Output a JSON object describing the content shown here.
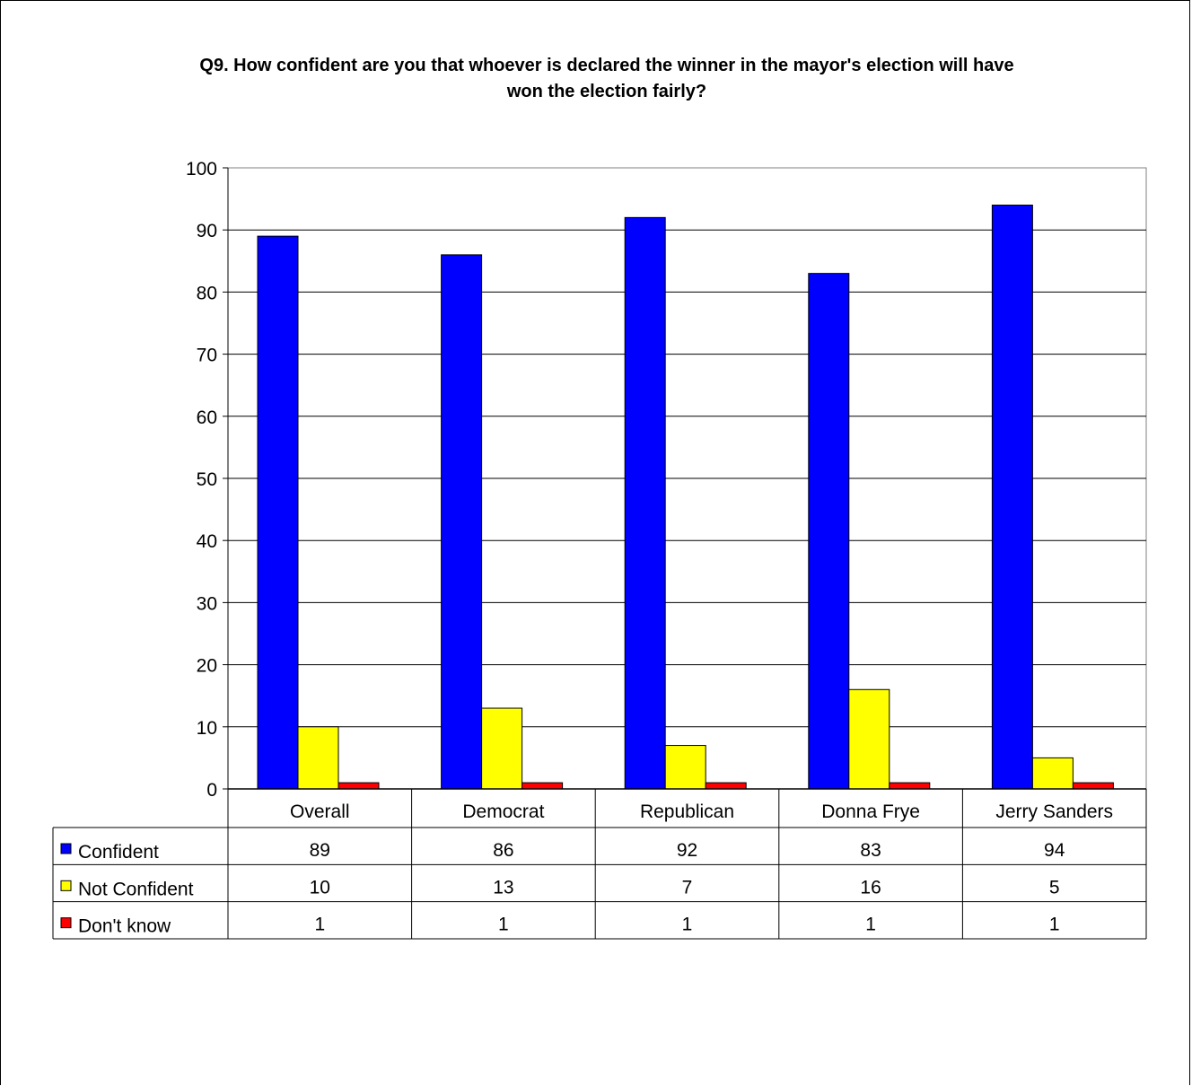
{
  "chart_data": {
    "type": "bar",
    "title": "Q9. How confident are you that whoever is declared the winner in the mayor's election will have won the election fairly?",
    "categories": [
      "Overall",
      "Democrat",
      "Republican",
      "Donna Frye",
      "Jerry Sanders"
    ],
    "series": [
      {
        "name": "Confident",
        "values": [
          89,
          86,
          92,
          83,
          94
        ],
        "color": "#0000ff"
      },
      {
        "name": "Not Confident",
        "values": [
          10,
          13,
          7,
          16,
          5
        ],
        "color": "#ffff00"
      },
      {
        "name": "Don't know",
        "values": [
          1,
          1,
          1,
          1,
          1
        ],
        "color": "#ff0000"
      }
    ],
    "ylim": [
      0,
      100
    ],
    "yticks": [
      0,
      10,
      20,
      30,
      40,
      50,
      60,
      70,
      80,
      90,
      100
    ],
    "grid": true,
    "legend": "data-table",
    "xlabel": "",
    "ylabel": ""
  }
}
